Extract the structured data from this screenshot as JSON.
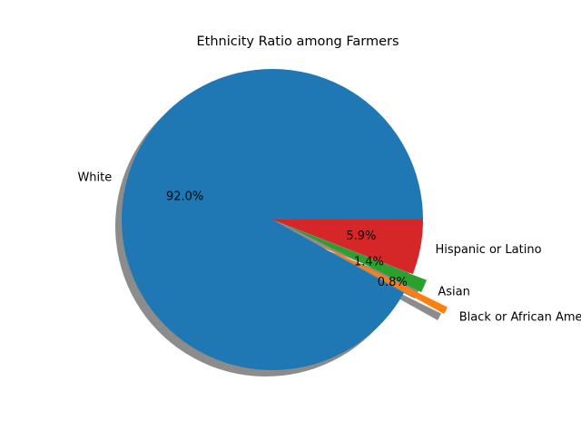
{
  "chart_data": {
    "type": "pie",
    "title": "Ethnicity Ratio among Farmers",
    "shadow": true,
    "start_angle_deg": 0,
    "slices": [
      {
        "label": "White",
        "percent_label": "92.0%",
        "value": 92.0,
        "color": "#1f77b4",
        "explode": 0
      },
      {
        "label": "Black or African American",
        "percent_label": "0.8%",
        "value": 0.8,
        "color": "#ff7f0e",
        "explode": 0.3
      },
      {
        "label": "Asian",
        "percent_label": "1.4%",
        "value": 1.4,
        "color": "#2ca02c",
        "explode": 0.1
      },
      {
        "label": "Hispanic or Latino",
        "percent_label": "5.9%",
        "value": 5.9,
        "color": "#d62728",
        "explode": 0
      }
    ]
  }
}
